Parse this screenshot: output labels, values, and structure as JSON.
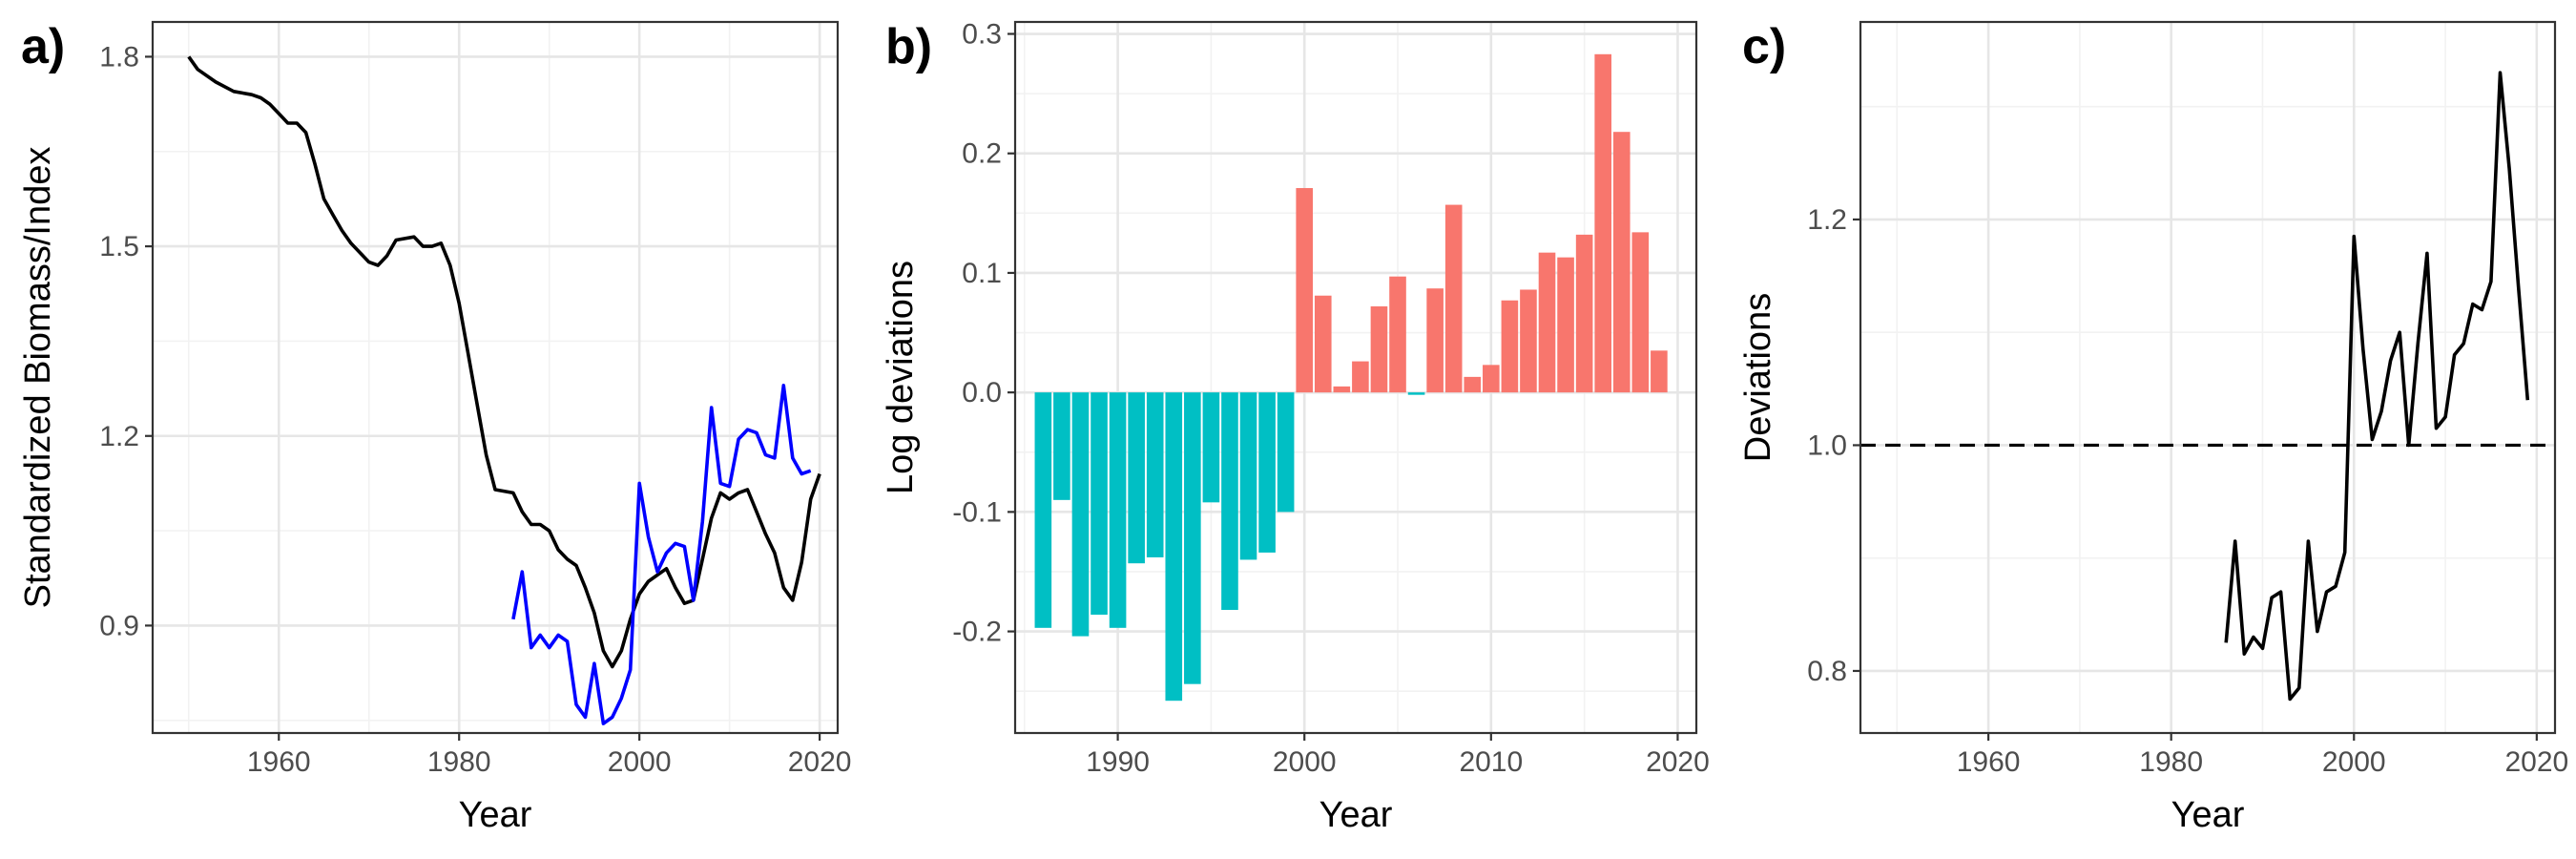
{
  "chart_data": [
    {
      "panel_label": "a)",
      "type": "line",
      "xlabel": "Year",
      "ylabel": "Standardized Biomass/Index",
      "xlim": [
        1946,
        2022
      ],
      "ylim": [
        0.73,
        1.855
      ],
      "xticks": [
        1960,
        1980,
        2000,
        2020
      ],
      "yticks": [
        0.9,
        1.2,
        1.5,
        1.8
      ],
      "ytick_labels": [
        "0.9",
        "1.2",
        "1.5",
        "1.8"
      ],
      "grid": true,
      "series": [
        {
          "color": "#000000",
          "x": [
            1950,
            1951,
            1953,
            1955,
            1957,
            1958,
            1959,
            1960,
            1961,
            1962,
            1963,
            1964,
            1965,
            1966,
            1967,
            1968,
            1969,
            1970,
            1971,
            1972,
            1973,
            1975,
            1976,
            1977,
            1978,
            1979,
            1980,
            1981,
            1982,
            1983,
            1984,
            1986,
            1987,
            1988,
            1989,
            1990,
            1991,
            1992,
            1993,
            1994,
            1995,
            1996,
            1997,
            1998,
            1999,
            2000,
            2001,
            2002,
            2003,
            2004,
            2005,
            2006,
            2007,
            2008,
            2009,
            2010,
            2011,
            2012,
            2013,
            2014,
            2015,
            2016,
            2017,
            2018,
            2019,
            2020
          ],
          "y": [
            1.8,
            1.78,
            1.76,
            1.745,
            1.74,
            1.735,
            1.725,
            1.71,
            1.695,
            1.695,
            1.68,
            1.63,
            1.575,
            1.55,
            1.525,
            1.505,
            1.49,
            1.475,
            1.47,
            1.485,
            1.51,
            1.515,
            1.5,
            1.5,
            1.505,
            1.47,
            1.41,
            1.33,
            1.25,
            1.17,
            1.115,
            1.11,
            1.08,
            1.06,
            1.06,
            1.05,
            1.02,
            1.005,
            0.995,
            0.96,
            0.92,
            0.86,
            0.835,
            0.86,
            0.91,
            0.95,
            0.97,
            0.98,
            0.99,
            0.96,
            0.935,
            0.94,
            1.005,
            1.07,
            1.11,
            1.1,
            1.11,
            1.115,
            1.08,
            1.045,
            1.015,
            0.96,
            0.94,
            1.0,
            1.1,
            1.14
          ]
        },
        {
          "color": "#0000ff",
          "x": [
            1986,
            1987,
            1988,
            1989,
            1990,
            1991,
            1992,
            1993,
            1994,
            1995,
            1996,
            1997,
            1998,
            1999,
            2000,
            2001,
            2002,
            2003,
            2004,
            2005,
            2006,
            2007,
            2008,
            2009,
            2010,
            2011,
            2012,
            2013,
            2014,
            2015,
            2016,
            2017,
            2018,
            2019
          ],
          "y": [
            0.91,
            0.985,
            0.865,
            0.885,
            0.865,
            0.885,
            0.875,
            0.775,
            0.755,
            0.84,
            0.745,
            0.755,
            0.785,
            0.83,
            1.125,
            1.04,
            0.985,
            1.015,
            1.03,
            1.025,
            0.94,
            1.065,
            1.245,
            1.125,
            1.12,
            1.195,
            1.21,
            1.205,
            1.17,
            1.165,
            1.28,
            1.165,
            1.14,
            1.145
          ]
        }
      ]
    },
    {
      "panel_label": "b)",
      "type": "bar",
      "xlabel": "Year",
      "ylabel": "Log deviations",
      "xlim": [
        1984.5,
        2021.0
      ],
      "ylim": [
        -0.285,
        0.31
      ],
      "xticks": [
        1990,
        2000,
        2010,
        2020
      ],
      "yticks": [
        -0.2,
        -0.1,
        0.0,
        0.1,
        0.2,
        0.3
      ],
      "ytick_labels": [
        "-0.2",
        "-0.1",
        "0.0",
        "0.1",
        "0.2",
        "0.3"
      ],
      "grid": true,
      "negative_color": "#00bfc4",
      "positive_color": "#f8766d",
      "x": [
        1986,
        1987,
        1988,
        1989,
        1990,
        1991,
        1992,
        1993,
        1994,
        1995,
        1996,
        1997,
        1998,
        1999,
        2000,
        2001,
        2002,
        2003,
        2004,
        2005,
        2006,
        2007,
        2008,
        2009,
        2010,
        2011,
        2012,
        2013,
        2014,
        2015,
        2016,
        2017,
        2018,
        2019
      ],
      "values": [
        -0.197,
        -0.09,
        -0.204,
        -0.186,
        -0.197,
        -0.143,
        -0.138,
        -0.258,
        -0.244,
        -0.092,
        -0.182,
        -0.14,
        -0.134,
        -0.1,
        0.171,
        0.081,
        0.005,
        0.026,
        0.072,
        0.097,
        -0.002,
        0.087,
        0.157,
        0.013,
        0.023,
        0.077,
        0.086,
        0.117,
        0.113,
        0.132,
        0.283,
        0.218,
        0.134,
        0.035
      ]
    },
    {
      "panel_label": "c)",
      "type": "line",
      "xlabel": "Year",
      "ylabel": "Deviations",
      "xlim": [
        1946,
        2022
      ],
      "ylim": [
        0.745,
        1.375
      ],
      "xticks": [
        1960,
        1980,
        2000,
        2020
      ],
      "yticks": [
        0.8,
        1.0,
        1.2
      ],
      "ytick_labels": [
        "0.8",
        "1.0",
        "1.2"
      ],
      "grid": true,
      "reference_line": 1.0,
      "series": [
        {
          "color": "#000000",
          "x": [
            1986,
            1987,
            1988,
            1989,
            1990,
            1991,
            1992,
            1993,
            1994,
            1995,
            1996,
            1997,
            1998,
            1999,
            2000,
            2001,
            2002,
            2003,
            2004,
            2005,
            2006,
            2007,
            2008,
            2009,
            2010,
            2011,
            2012,
            2013,
            2014,
            2015,
            2016,
            2017,
            2018,
            2019
          ],
          "y": [
            0.825,
            0.915,
            0.815,
            0.83,
            0.82,
            0.865,
            0.87,
            0.775,
            0.785,
            0.915,
            0.835,
            0.87,
            0.875,
            0.905,
            1.185,
            1.085,
            1.005,
            1.03,
            1.075,
            1.1,
            1.0,
            1.09,
            1.17,
            1.015,
            1.025,
            1.08,
            1.09,
            1.125,
            1.12,
            1.145,
            1.33,
            1.245,
            1.14,
            1.04
          ]
        }
      ]
    }
  ]
}
